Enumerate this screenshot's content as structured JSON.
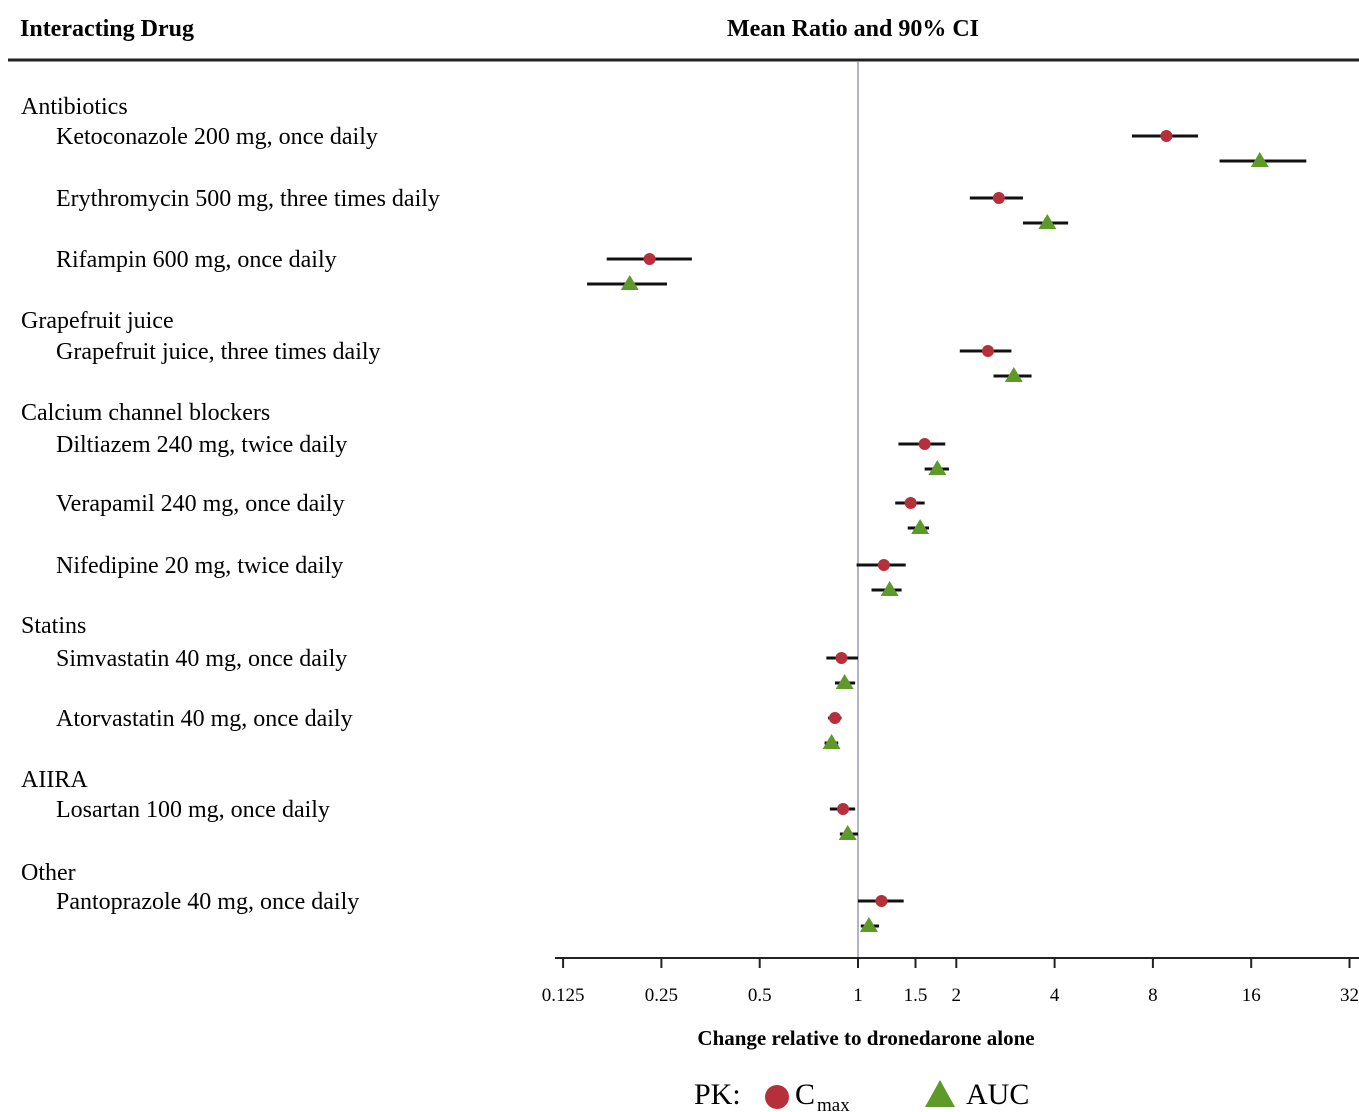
{
  "header": {
    "left_title": "Interacting Drug",
    "center_title": "Mean Ratio and 90% CI"
  },
  "chart_data": {
    "type": "forest",
    "xlabel": "Change relative to dronedarone alone",
    "x_scale": "log2",
    "xlim": [
      0.125,
      32
    ],
    "tick_values": [
      0.125,
      0.25,
      0.5,
      1,
      1.5,
      2,
      4,
      8,
      16,
      32
    ],
    "tick_labels": [
      "0.125",
      "0.25",
      "0.5",
      "1",
      "1.5",
      "2",
      "4",
      "8",
      "16",
      "32"
    ],
    "reference_line": 1,
    "legend": {
      "prefix": "PK:",
      "cmax_main": "C",
      "cmax_sub": "max",
      "auc": "AUC"
    },
    "colors": {
      "cmax": "#b5303a",
      "auc": "#5e9a2a",
      "ci": "#111111",
      "ref_line": "#9a9ab8"
    },
    "groups": [
      {
        "category": "Antibiotics",
        "drugs": [
          {
            "label": "Ketoconazole 200 mg, once daily",
            "cmax": {
              "mean": 8.8,
              "lo": 6.9,
              "hi": 11.0
            },
            "auc": {
              "mean": 17.0,
              "lo": 12.8,
              "hi": 23.6
            }
          },
          {
            "label": "Erythromycin  500 mg, three times daily",
            "cmax": {
              "mean": 2.7,
              "lo": 2.2,
              "hi": 3.2
            },
            "auc": {
              "mean": 3.8,
              "lo": 3.2,
              "hi": 4.4
            }
          },
          {
            "label": "Rifampin 600 mg, once daily",
            "cmax": {
              "mean": 0.23,
              "lo": 0.17,
              "hi": 0.31
            },
            "auc": {
              "mean": 0.2,
              "lo": 0.148,
              "hi": 0.26
            }
          }
        ]
      },
      {
        "category": "Grapefruit juice",
        "drugs": [
          {
            "label": "Grapefruit juice, three times daily",
            "cmax": {
              "mean": 2.5,
              "lo": 2.05,
              "hi": 2.95
            },
            "auc": {
              "mean": 3.0,
              "lo": 2.6,
              "hi": 3.4
            }
          }
        ]
      },
      {
        "category": "Calcium channel blockers",
        "drugs": [
          {
            "label": "Diltiazem 240 mg, twice daily",
            "cmax": {
              "mean": 1.6,
              "lo": 1.33,
              "hi": 1.85
            },
            "auc": {
              "mean": 1.75,
              "lo": 1.6,
              "hi": 1.9
            }
          },
          {
            "label": "Verapamil 240 mg, once daily",
            "cmax": {
              "mean": 1.45,
              "lo": 1.3,
              "hi": 1.6
            },
            "auc": {
              "mean": 1.55,
              "lo": 1.42,
              "hi": 1.65
            }
          },
          {
            "label": "Nifedipine 20 mg, twice daily",
            "cmax": {
              "mean": 1.2,
              "lo": 0.99,
              "hi": 1.4
            },
            "auc": {
              "mean": 1.25,
              "lo": 1.1,
              "hi": 1.36
            }
          }
        ]
      },
      {
        "category": "Statins",
        "drugs": [
          {
            "label": "Simvastatin 40 mg, once daily",
            "cmax": {
              "mean": 0.89,
              "lo": 0.8,
              "hi": 1.0
            },
            "auc": {
              "mean": 0.91,
              "lo": 0.85,
              "hi": 0.98
            }
          },
          {
            "label": "Atorvastatin 40 mg, once daily",
            "cmax": {
              "mean": 0.85,
              "lo": 0.81,
              "hi": 0.89
            },
            "auc": {
              "mean": 0.83,
              "lo": 0.79,
              "hi": 0.87
            }
          }
        ]
      },
      {
        "category": "AIIRA",
        "drugs": [
          {
            "label": "Losartan 100 mg, once daily",
            "cmax": {
              "mean": 0.9,
              "lo": 0.82,
              "hi": 0.98
            },
            "auc": {
              "mean": 0.93,
              "lo": 0.88,
              "hi": 1.0
            }
          }
        ]
      },
      {
        "category": "Other",
        "drugs": [
          {
            "label": "Pantoprazole 40 mg, once daily",
            "cmax": {
              "mean": 1.18,
              "lo": 1.0,
              "hi": 1.38
            },
            "auc": {
              "mean": 1.08,
              "lo": 1.02,
              "hi": 1.16
            }
          }
        ]
      }
    ]
  }
}
